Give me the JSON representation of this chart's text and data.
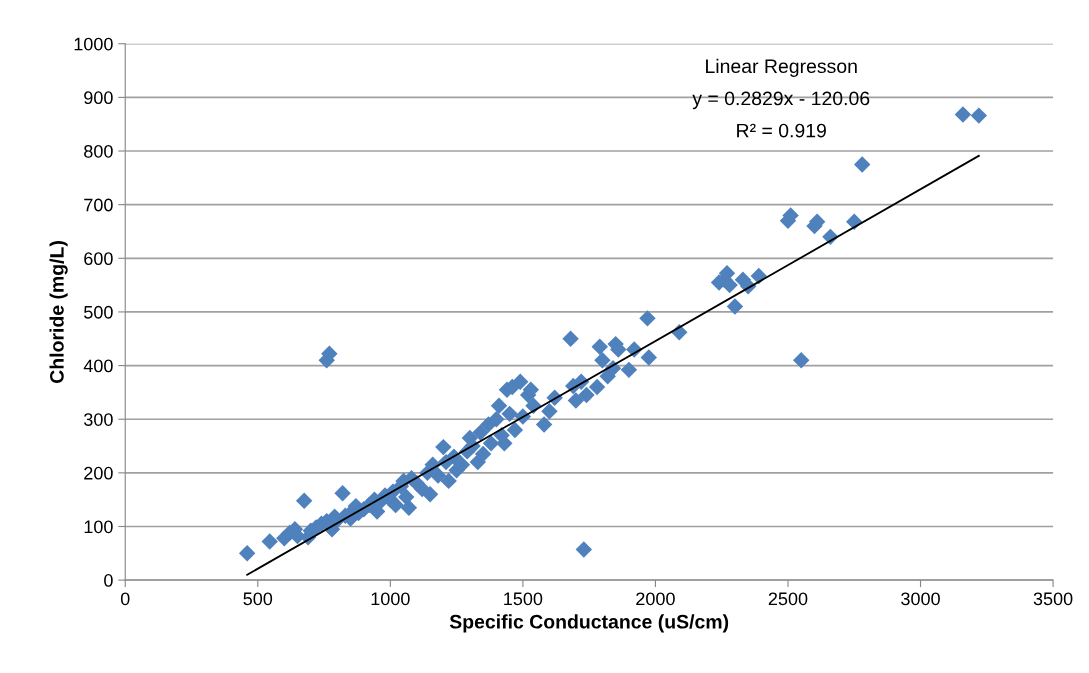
{
  "chart_data": {
    "type": "scatter",
    "xlabel": "Specific Conductance (uS/cm)",
    "ylabel": "Chloride (mg/L)",
    "annotations": [
      "Linear Regresson",
      "y = 0.2829x - 120.06",
      "R² = 0.919"
    ],
    "xlim": [
      0,
      3500
    ],
    "xticks": [
      0,
      500,
      1000,
      1500,
      2000,
      2500,
      3000,
      3500
    ],
    "ylim": [
      0,
      1000
    ],
    "yticks": [
      0,
      100,
      200,
      300,
      400,
      500,
      600,
      700,
      800,
      900,
      1000
    ],
    "grid": "y",
    "legend": false,
    "series": [
      {
        "marker": "diamond",
        "color": "#4f81bd",
        "x": [
          460,
          545,
          600,
          620,
          640,
          650,
          675,
          690,
          700,
          720,
          740,
          760,
          760,
          770,
          780,
          790,
          800,
          820,
          830,
          850,
          860,
          870,
          880,
          900,
          920,
          940,
          950,
          960,
          980,
          1000,
          1010,
          1020,
          1040,
          1050,
          1060,
          1070,
          1080,
          1100,
          1120,
          1140,
          1150,
          1160,
          1180,
          1200,
          1210,
          1220,
          1240,
          1250,
          1270,
          1290,
          1300,
          1310,
          1330,
          1340,
          1350,
          1370,
          1380,
          1400,
          1410,
          1420,
          1430,
          1440,
          1450,
          1460,
          1470,
          1490,
          1500,
          1520,
          1530,
          1540,
          1580,
          1600,
          1620,
          1680,
          1690,
          1700,
          1720,
          1740,
          1730,
          1780,
          1790,
          1800,
          1820,
          1840,
          1850,
          1860,
          1900,
          1920,
          1970,
          1975,
          2090,
          2240,
          2260,
          2270,
          2280,
          2300,
          2330,
          2350,
          2390,
          2500,
          2510,
          2550,
          2600,
          2610,
          2660,
          2750,
          2780,
          3160,
          3220
        ],
        "values": [
          50,
          72,
          78,
          88,
          95,
          82,
          148,
          80,
          92,
          98,
          105,
          110,
          410,
          422,
          95,
          118,
          112,
          162,
          120,
          115,
          130,
          138,
          125,
          132,
          140,
          150,
          128,
          145,
          158,
          150,
          165,
          140,
          175,
          185,
          155,
          135,
          190,
          180,
          170,
          200,
          160,
          215,
          195,
          248,
          220,
          185,
          230,
          205,
          215,
          240,
          265,
          250,
          220,
          275,
          235,
          290,
          255,
          300,
          325,
          270,
          255,
          355,
          310,
          360,
          280,
          370,
          305,
          345,
          355,
          325,
          290,
          315,
          340,
          450,
          362,
          335,
          370,
          345,
          57,
          360,
          435,
          410,
          380,
          395,
          440,
          430,
          392,
          430,
          488,
          415,
          462,
          555,
          560,
          572,
          550,
          510,
          560,
          548,
          567,
          670,
          680,
          410,
          660,
          668,
          640,
          668,
          775,
          868,
          866
        ]
      },
      {
        "type": "line",
        "marker": "none",
        "line_style": "solid",
        "color": "#000000",
        "x": [
          460,
          3220
        ],
        "values": [
          10,
          791
        ]
      }
    ]
  }
}
